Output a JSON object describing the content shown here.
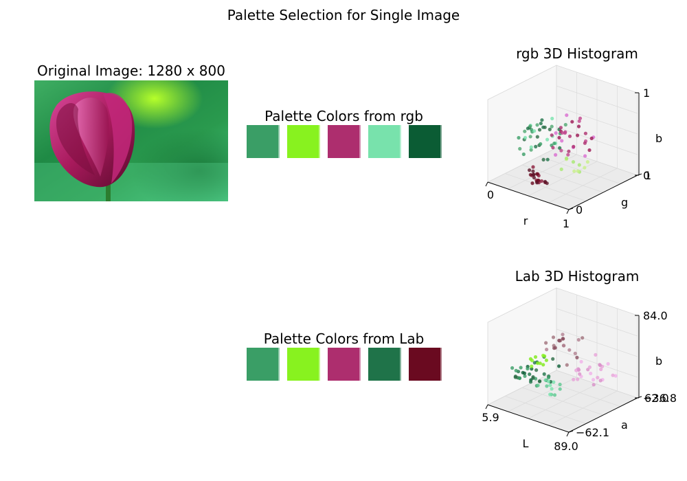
{
  "figure": {
    "title": "Palette Selection for Single Image"
  },
  "original": {
    "title": "Original Image: 1280 x 800"
  },
  "palette_rgb": {
    "title": "Palette Colors from rgb",
    "colors": [
      "#3a9e66",
      "#88f21f",
      "#ad2e6e",
      "#78e2ac",
      "#0b5c34"
    ]
  },
  "palette_lab": {
    "title": "Palette Colors from Lab",
    "colors": [
      "#3a9e66",
      "#88f21f",
      "#ad2e6e",
      "#1f7349",
      "#6a0a20"
    ]
  },
  "chart_data": [
    {
      "type": "scatter",
      "title": "rgb 3D Histogram",
      "axes": {
        "x": "r",
        "y": "g",
        "z": "b"
      },
      "x_ticks": [
        "0",
        "1"
      ],
      "y_ticks": [
        "0",
        "1"
      ],
      "z_ticks": [
        "0",
        "1"
      ],
      "xlim": [
        0,
        1
      ],
      "ylim": [
        0,
        1
      ],
      "zlim": [
        0,
        1
      ]
    },
    {
      "type": "scatter",
      "title": "Lab 3D Histogram",
      "axes": {
        "x": "L",
        "y": "a",
        "z": "b"
      },
      "x_ticks": [
        "5.9",
        "89.0"
      ],
      "y_ticks": [
        "−62.1",
        "62.0"
      ],
      "z_ticks": [
        "−36.8",
        "84.0"
      ],
      "xlim": [
        5.9,
        89.0
      ],
      "ylim": [
        -62.1,
        62.0
      ],
      "zlim": [
        -36.8,
        84.0
      ]
    }
  ]
}
